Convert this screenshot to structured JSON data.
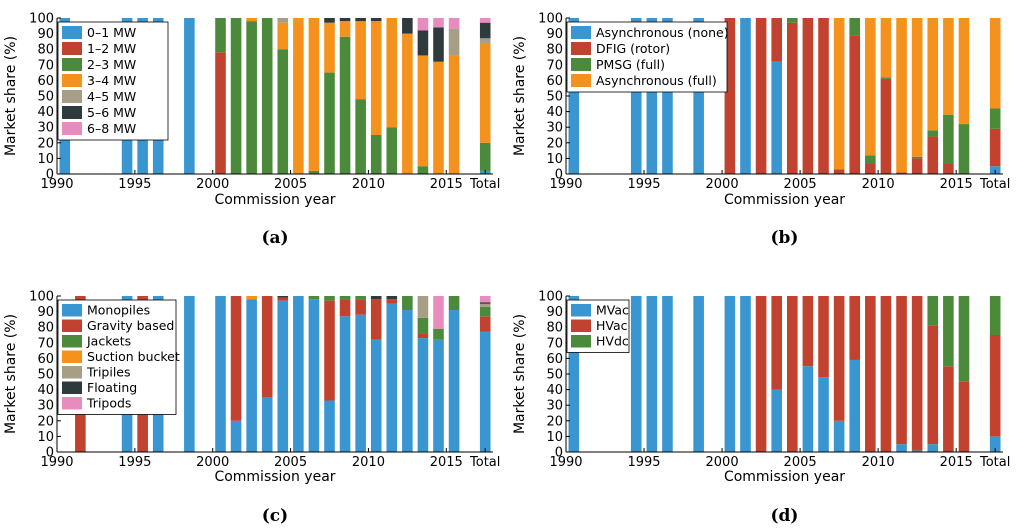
{
  "chart_data": [
    {
      "type": "bar",
      "panel": "(a)",
      "xlabel": "Commission year",
      "ylabel": "Market share (%)",
      "ylim": [
        0,
        100
      ],
      "yticks": [
        0,
        10,
        20,
        30,
        40,
        50,
        60,
        70,
        80,
        90,
        100
      ],
      "xtick_labels": [
        "1990",
        "1995",
        "2000",
        "2005",
        "2010",
        "2015",
        "Total"
      ],
      "legend_position": "top-left",
      "categories": [
        "1990",
        "1991",
        "1992",
        "1993",
        "1994",
        "1995",
        "1996",
        "1997",
        "1998",
        "1999",
        "2000",
        "2001",
        "2002",
        "2003",
        "2004",
        "2005",
        "2006",
        "2007",
        "2008",
        "2009",
        "2010",
        "2011",
        "2012",
        "2013",
        "2014",
        "2015",
        "2016",
        "Total"
      ],
      "series": [
        {
          "name": "0–1 MW",
          "color": "#3a96d1",
          "values": [
            100,
            0,
            0,
            0,
            100,
            100,
            100,
            0,
            100,
            0,
            0,
            0,
            0,
            0,
            0,
            0,
            0,
            0,
            0,
            0,
            0,
            0,
            0,
            0,
            0,
            0,
            0,
            2
          ]
        },
        {
          "name": "1–2 MW",
          "color": "#c1432f",
          "values": [
            0,
            0,
            0,
            0,
            0,
            0,
            0,
            0,
            0,
            0,
            78,
            0,
            0,
            0,
            0,
            0,
            0,
            0,
            0,
            0,
            0,
            0,
            0,
            0,
            0,
            0,
            0,
            0
          ]
        },
        {
          "name": "2–3 MW",
          "color": "#4a8a3a",
          "values": [
            0,
            0,
            0,
            0,
            0,
            0,
            0,
            0,
            0,
            0,
            22,
            100,
            98,
            100,
            80,
            0,
            2,
            65,
            88,
            48,
            25,
            30,
            0,
            5,
            0,
            0,
            0,
            18
          ]
        },
        {
          "name": "3–4 MW",
          "color": "#f5921e",
          "values": [
            0,
            0,
            0,
            0,
            0,
            0,
            0,
            0,
            0,
            0,
            0,
            0,
            2,
            0,
            17,
            100,
            98,
            32,
            10,
            50,
            73,
            70,
            90,
            71,
            72,
            76,
            0,
            64
          ]
        },
        {
          "name": "4–5 MW",
          "color": "#a69e86",
          "values": [
            0,
            0,
            0,
            0,
            0,
            0,
            0,
            0,
            0,
            0,
            0,
            0,
            0,
            0,
            3,
            0,
            0,
            0,
            0,
            0,
            0,
            0,
            0,
            0,
            0,
            17,
            0,
            3
          ]
        },
        {
          "name": "5–6 MW",
          "color": "#2f3a3d",
          "values": [
            0,
            0,
            0,
            0,
            0,
            0,
            0,
            0,
            0,
            0,
            0,
            0,
            0,
            0,
            0,
            0,
            0,
            3,
            2,
            2,
            2,
            0,
            10,
            16,
            22,
            0,
            0,
            10
          ]
        },
        {
          "name": "6–8 MW",
          "color": "#e98bbf",
          "values": [
            0,
            0,
            0,
            0,
            0,
            0,
            0,
            0,
            0,
            0,
            0,
            0,
            0,
            0,
            0,
            0,
            0,
            0,
            0,
            0,
            0,
            0,
            0,
            8,
            6,
            7,
            0,
            3
          ]
        }
      ]
    },
    {
      "type": "bar",
      "panel": "(b)",
      "xlabel": "Commission year",
      "ylabel": "Market share (%)",
      "ylim": [
        0,
        100
      ],
      "yticks": [
        0,
        10,
        20,
        30,
        40,
        50,
        60,
        70,
        80,
        90,
        100
      ],
      "xtick_labels": [
        "1990",
        "1995",
        "2000",
        "2005",
        "2010",
        "2015",
        "Total"
      ],
      "legend_position": "top-left",
      "categories": [
        "1990",
        "1991",
        "1992",
        "1993",
        "1994",
        "1995",
        "1996",
        "1997",
        "1998",
        "1999",
        "2000",
        "2001",
        "2002",
        "2003",
        "2004",
        "2005",
        "2006",
        "2007",
        "2008",
        "2009",
        "2010",
        "2011",
        "2012",
        "2013",
        "2014",
        "2015",
        "2016",
        "Total"
      ],
      "series": [
        {
          "name": "Asynchronous (none)",
          "color": "#3a96d1",
          "values": [
            100,
            0,
            0,
            0,
            100,
            100,
            100,
            0,
            100,
            0,
            0,
            100,
            0,
            72,
            0,
            0,
            0,
            0,
            0,
            0,
            0,
            0,
            0,
            0,
            0,
            0,
            0,
            5
          ]
        },
        {
          "name": "DFIG (rotor)",
          "color": "#c1432f",
          "values": [
            0,
            0,
            0,
            0,
            0,
            0,
            0,
            0,
            0,
            0,
            100,
            0,
            100,
            28,
            97,
            100,
            100,
            3,
            89,
            7,
            61,
            1,
            10,
            24,
            7,
            0,
            0,
            24
          ]
        },
        {
          "name": "PMSG (full)",
          "color": "#4a8a3a",
          "values": [
            0,
            0,
            0,
            0,
            0,
            0,
            0,
            0,
            0,
            0,
            0,
            0,
            0,
            0,
            3,
            0,
            0,
            0,
            11,
            5,
            1,
            0,
            1,
            4,
            31,
            32,
            0,
            13
          ]
        },
        {
          "name": "Asynchronous (full)",
          "color": "#f5921e",
          "values": [
            0,
            0,
            0,
            0,
            0,
            0,
            0,
            0,
            0,
            0,
            0,
            0,
            0,
            0,
            0,
            0,
            0,
            97,
            0,
            88,
            38,
            99,
            89,
            72,
            62,
            68,
            0,
            58
          ]
        }
      ]
    },
    {
      "type": "bar",
      "panel": "(c)",
      "xlabel": "Commission year",
      "ylabel": "Market share (%)",
      "ylim": [
        0,
        100
      ],
      "yticks": [
        0,
        10,
        20,
        30,
        40,
        50,
        60,
        70,
        80,
        90,
        100
      ],
      "xtick_labels": [
        "1990",
        "1995",
        "2000",
        "2005",
        "2010",
        "2015",
        "Total"
      ],
      "legend_position": "top-left",
      "categories": [
        "1990",
        "1991",
        "1992",
        "1993",
        "1994",
        "1995",
        "1996",
        "1997",
        "1998",
        "1999",
        "2000",
        "2001",
        "2002",
        "2003",
        "2004",
        "2005",
        "2006",
        "2007",
        "2008",
        "2009",
        "2010",
        "2011",
        "2012",
        "2013",
        "2014",
        "2015",
        "2016",
        "Total"
      ],
      "series": [
        {
          "name": "Monopiles",
          "color": "#3a96d1",
          "values": [
            0,
            0,
            0,
            0,
            100,
            0,
            100,
            0,
            100,
            0,
            100,
            20,
            98,
            35,
            97,
            100,
            98,
            33,
            87,
            88,
            72,
            95,
            91,
            73,
            72,
            91,
            0,
            77
          ]
        },
        {
          "name": "Gravity based",
          "color": "#c1432f",
          "values": [
            0,
            100,
            0,
            0,
            0,
            100,
            0,
            0,
            0,
            0,
            0,
            80,
            0,
            65,
            2,
            0,
            0,
            64,
            11,
            10,
            26,
            3,
            0,
            3,
            0,
            0,
            0,
            10
          ]
        },
        {
          "name": "Jackets",
          "color": "#4a8a3a",
          "values": [
            0,
            0,
            0,
            0,
            0,
            0,
            0,
            0,
            0,
            0,
            0,
            0,
            0,
            0,
            0,
            0,
            2,
            3,
            2,
            2,
            0,
            0,
            9,
            10,
            7,
            9,
            0,
            6
          ]
        },
        {
          "name": "Suction bucket",
          "color": "#f5921e",
          "values": [
            0,
            0,
            0,
            0,
            0,
            0,
            0,
            0,
            0,
            0,
            0,
            0,
            2,
            0,
            0,
            0,
            0,
            0,
            0,
            0,
            0,
            0,
            0,
            0,
            0,
            0,
            0,
            0
          ]
        },
        {
          "name": "Tripiles",
          "color": "#a69e86",
          "values": [
            0,
            0,
            0,
            0,
            0,
            0,
            0,
            0,
            0,
            0,
            0,
            0,
            0,
            0,
            0,
            0,
            0,
            0,
            0,
            0,
            0,
            0,
            0,
            14,
            0,
            0,
            0,
            2
          ]
        },
        {
          "name": "Floating",
          "color": "#2f3a3d",
          "values": [
            0,
            0,
            0,
            0,
            0,
            0,
            0,
            0,
            0,
            0,
            0,
            0,
            0,
            0,
            1,
            0,
            0,
            0,
            0,
            0,
            2,
            2,
            0,
            0,
            0,
            0,
            0,
            1
          ]
        },
        {
          "name": "Tripods",
          "color": "#e98bbf",
          "values": [
            0,
            0,
            0,
            0,
            0,
            0,
            0,
            0,
            0,
            0,
            0,
            0,
            0,
            0,
            0,
            0,
            0,
            0,
            0,
            0,
            0,
            0,
            0,
            0,
            21,
            0,
            0,
            4
          ]
        }
      ]
    },
    {
      "type": "bar",
      "panel": "(d)",
      "xlabel": "Commission year",
      "ylabel": "Market share (%)",
      "ylim": [
        0,
        100
      ],
      "yticks": [
        0,
        10,
        20,
        30,
        40,
        50,
        60,
        70,
        80,
        90,
        100
      ],
      "xtick_labels": [
        "1990",
        "1995",
        "2000",
        "2005",
        "2010",
        "2015",
        "Total"
      ],
      "legend_position": "top-left",
      "categories": [
        "1990",
        "1991",
        "1992",
        "1993",
        "1994",
        "1995",
        "1996",
        "1997",
        "1998",
        "1999",
        "2000",
        "2001",
        "2002",
        "2003",
        "2004",
        "2005",
        "2006",
        "2007",
        "2008",
        "2009",
        "2010",
        "2011",
        "2012",
        "2013",
        "2014",
        "2015",
        "2016",
        "Total"
      ],
      "series": [
        {
          "name": "MVac",
          "color": "#3a96d1",
          "values": [
            100,
            0,
            0,
            0,
            100,
            100,
            100,
            0,
            100,
            0,
            100,
            100,
            0,
            40,
            0,
            55,
            48,
            20,
            59,
            0,
            0,
            5,
            1,
            5,
            0,
            0,
            0,
            10
          ]
        },
        {
          "name": "HVac",
          "color": "#c1432f",
          "values": [
            0,
            0,
            0,
            0,
            0,
            0,
            0,
            0,
            0,
            0,
            0,
            0,
            100,
            60,
            100,
            45,
            52,
            80,
            41,
            100,
            100,
            95,
            99,
            76,
            55,
            45,
            0,
            65
          ]
        },
        {
          "name": "HVdc",
          "color": "#4a8a3a",
          "values": [
            0,
            0,
            0,
            0,
            0,
            0,
            0,
            0,
            0,
            0,
            0,
            0,
            0,
            0,
            0,
            0,
            0,
            0,
            0,
            0,
            0,
            0,
            0,
            19,
            45,
            55,
            0,
            25
          ]
        }
      ]
    }
  ]
}
